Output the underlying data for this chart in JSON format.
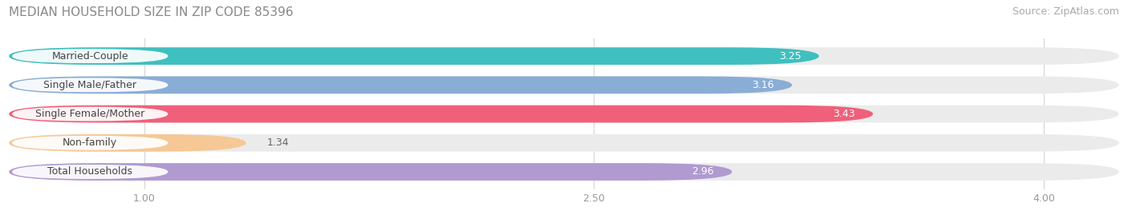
{
  "title": "MEDIAN HOUSEHOLD SIZE IN ZIP CODE 85396",
  "source": "Source: ZipAtlas.com",
  "categories": [
    "Married-Couple",
    "Single Male/Father",
    "Single Female/Mother",
    "Non-family",
    "Total Households"
  ],
  "values": [
    3.25,
    3.16,
    3.43,
    1.34,
    2.96
  ],
  "bar_colors": [
    "#3fbfbf",
    "#8aadd6",
    "#f0607a",
    "#f5c896",
    "#b09ad0"
  ],
  "xlim_min": 0.55,
  "xlim_max": 4.25,
  "xticks": [
    1.0,
    2.5,
    4.0
  ],
  "title_fontsize": 11,
  "source_fontsize": 9,
  "label_fontsize": 9,
  "value_fontsize": 9,
  "background_color": "#ffffff",
  "bar_height": 0.6,
  "bar_bg_color": "#ebebeb",
  "label_pill_color": "#ffffff",
  "grid_color": "#d5d5d5"
}
